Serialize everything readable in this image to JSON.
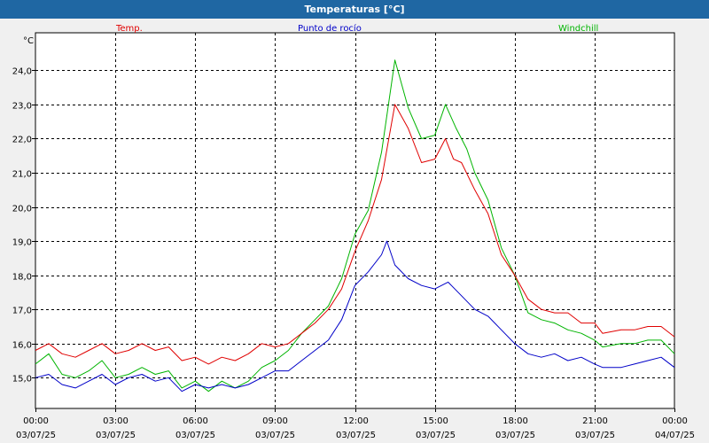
{
  "window": {
    "title": "Temperaturas [°C]"
  },
  "colors": {
    "temp": "#e00000",
    "dew": "#0000c8",
    "windchill": "#00b400",
    "titlebar": "#1f67a3",
    "grid": "#000000",
    "background": "#ffffff"
  },
  "chart_data": {
    "type": "line",
    "title": "Temperaturas [°C]",
    "ylabel": "°C",
    "xlabel": "",
    "grid": true,
    "ylim": [
      14.1,
      25.1
    ],
    "xlim": [
      0,
      24
    ],
    "yticks": [
      15.0,
      16.0,
      17.0,
      18.0,
      19.0,
      20.0,
      21.0,
      22.0,
      23.0,
      24.0
    ],
    "ytick_labels": [
      "15,0",
      "16,0",
      "17,0",
      "18,0",
      "19,0",
      "20,0",
      "21,0",
      "22,0",
      "23,0",
      "24,0"
    ],
    "xticks": [
      {
        "x": 0,
        "time": "00:00",
        "date": "03/07/25"
      },
      {
        "x": 3,
        "time": "03:00",
        "date": "03/07/25"
      },
      {
        "x": 6,
        "time": "06:00",
        "date": "03/07/25"
      },
      {
        "x": 9,
        "time": "09:00",
        "date": "03/07/25"
      },
      {
        "x": 12,
        "time": "12:00",
        "date": "03/07/25"
      },
      {
        "x": 15,
        "time": "15:00",
        "date": "03/07/25"
      },
      {
        "x": 18,
        "time": "18:00",
        "date": "03/07/25"
      },
      {
        "x": 21,
        "time": "21:00",
        "date": "03/07/25"
      },
      {
        "x": 24,
        "time": "00:00",
        "date": "04/07/25"
      }
    ],
    "series": [
      {
        "name": "Temp.",
        "key": "temp",
        "points": [
          [
            0,
            15.8
          ],
          [
            0.5,
            16.0
          ],
          [
            1.0,
            15.7
          ],
          [
            1.5,
            15.6
          ],
          [
            2.0,
            15.8
          ],
          [
            2.5,
            16.0
          ],
          [
            3.0,
            15.7
          ],
          [
            3.5,
            15.8
          ],
          [
            4.0,
            16.0
          ],
          [
            4.5,
            15.8
          ],
          [
            5.0,
            15.9
          ],
          [
            5.5,
            15.5
          ],
          [
            6.0,
            15.6
          ],
          [
            6.5,
            15.4
          ],
          [
            7.0,
            15.6
          ],
          [
            7.5,
            15.5
          ],
          [
            8.0,
            15.7
          ],
          [
            8.5,
            16.0
          ],
          [
            9.0,
            15.9
          ],
          [
            9.5,
            16.0
          ],
          [
            10.0,
            16.3
          ],
          [
            10.5,
            16.6
          ],
          [
            11.0,
            17.0
          ],
          [
            11.5,
            17.6
          ],
          [
            12.0,
            18.7
          ],
          [
            12.5,
            19.6
          ],
          [
            13.0,
            20.8
          ],
          [
            13.5,
            23.0
          ],
          [
            14.0,
            22.3
          ],
          [
            14.5,
            21.3
          ],
          [
            15.0,
            21.4
          ],
          [
            15.4,
            22.0
          ],
          [
            15.7,
            21.4
          ],
          [
            16.0,
            21.3
          ],
          [
            16.5,
            20.5
          ],
          [
            17.0,
            19.8
          ],
          [
            17.5,
            18.6
          ],
          [
            18.0,
            18.0
          ],
          [
            18.5,
            17.3
          ],
          [
            19.0,
            17.0
          ],
          [
            19.5,
            16.9
          ],
          [
            20.0,
            16.9
          ],
          [
            20.5,
            16.6
          ],
          [
            21.0,
            16.6
          ],
          [
            21.3,
            16.3
          ],
          [
            22.0,
            16.4
          ],
          [
            22.5,
            16.4
          ],
          [
            23.0,
            16.5
          ],
          [
            23.5,
            16.5
          ],
          [
            24.0,
            16.2
          ]
        ]
      },
      {
        "name": "Punto de rocío",
        "key": "dew",
        "points": [
          [
            0,
            15.0
          ],
          [
            0.5,
            15.1
          ],
          [
            1.0,
            14.8
          ],
          [
            1.5,
            14.7
          ],
          [
            2.0,
            14.9
          ],
          [
            2.5,
            15.1
          ],
          [
            3.0,
            14.8
          ],
          [
            3.5,
            15.0
          ],
          [
            4.0,
            15.1
          ],
          [
            4.5,
            14.9
          ],
          [
            5.0,
            15.0
          ],
          [
            5.5,
            14.6
          ],
          [
            6.0,
            14.8
          ],
          [
            6.5,
            14.7
          ],
          [
            7.0,
            14.8
          ],
          [
            7.5,
            14.7
          ],
          [
            8.0,
            14.8
          ],
          [
            8.5,
            15.0
          ],
          [
            9.0,
            15.2
          ],
          [
            9.5,
            15.2
          ],
          [
            10.0,
            15.5
          ],
          [
            10.5,
            15.8
          ],
          [
            11.0,
            16.1
          ],
          [
            11.5,
            16.7
          ],
          [
            12.0,
            17.7
          ],
          [
            12.5,
            18.1
          ],
          [
            13.0,
            18.6
          ],
          [
            13.2,
            19.0
          ],
          [
            13.5,
            18.3
          ],
          [
            14.0,
            17.9
          ],
          [
            14.5,
            17.7
          ],
          [
            15.0,
            17.6
          ],
          [
            15.5,
            17.8
          ],
          [
            16.0,
            17.4
          ],
          [
            16.5,
            17.0
          ],
          [
            17.0,
            16.8
          ],
          [
            17.5,
            16.4
          ],
          [
            18.0,
            16.0
          ],
          [
            18.5,
            15.7
          ],
          [
            19.0,
            15.6
          ],
          [
            19.5,
            15.7
          ],
          [
            20.0,
            15.5
          ],
          [
            20.5,
            15.6
          ],
          [
            21.0,
            15.4
          ],
          [
            21.3,
            15.3
          ],
          [
            22.0,
            15.3
          ],
          [
            22.5,
            15.4
          ],
          [
            23.0,
            15.5
          ],
          [
            23.5,
            15.6
          ],
          [
            24.0,
            15.3
          ]
        ]
      },
      {
        "name": "Windchill",
        "key": "windchill",
        "points": [
          [
            0,
            15.4
          ],
          [
            0.5,
            15.7
          ],
          [
            1.0,
            15.1
          ],
          [
            1.5,
            15.0
          ],
          [
            2.0,
            15.2
          ],
          [
            2.5,
            15.5
          ],
          [
            3.0,
            15.0
          ],
          [
            3.5,
            15.1
          ],
          [
            4.0,
            15.3
          ],
          [
            4.5,
            15.1
          ],
          [
            5.0,
            15.2
          ],
          [
            5.5,
            14.7
          ],
          [
            6.0,
            14.9
          ],
          [
            6.5,
            14.6
          ],
          [
            7.0,
            14.9
          ],
          [
            7.5,
            14.7
          ],
          [
            8.0,
            14.9
          ],
          [
            8.5,
            15.3
          ],
          [
            9.0,
            15.5
          ],
          [
            9.5,
            15.8
          ],
          [
            10.0,
            16.3
          ],
          [
            10.5,
            16.7
          ],
          [
            11.0,
            17.1
          ],
          [
            11.5,
            17.9
          ],
          [
            12.0,
            19.2
          ],
          [
            12.5,
            19.9
          ],
          [
            13.0,
            21.6
          ],
          [
            13.5,
            24.3
          ],
          [
            14.0,
            22.9
          ],
          [
            14.5,
            22.0
          ],
          [
            15.0,
            22.1
          ],
          [
            15.4,
            23.0
          ],
          [
            15.8,
            22.3
          ],
          [
            16.2,
            21.7
          ],
          [
            16.5,
            21.0
          ],
          [
            17.0,
            20.2
          ],
          [
            17.5,
            18.8
          ],
          [
            18.0,
            18.0
          ],
          [
            18.5,
            16.9
          ],
          [
            19.0,
            16.7
          ],
          [
            19.5,
            16.6
          ],
          [
            20.0,
            16.4
          ],
          [
            20.5,
            16.3
          ],
          [
            21.0,
            16.1
          ],
          [
            21.3,
            15.9
          ],
          [
            22.0,
            16.0
          ],
          [
            22.5,
            16.0
          ],
          [
            23.0,
            16.1
          ],
          [
            23.5,
            16.1
          ],
          [
            24.0,
            15.7
          ]
        ]
      }
    ]
  }
}
